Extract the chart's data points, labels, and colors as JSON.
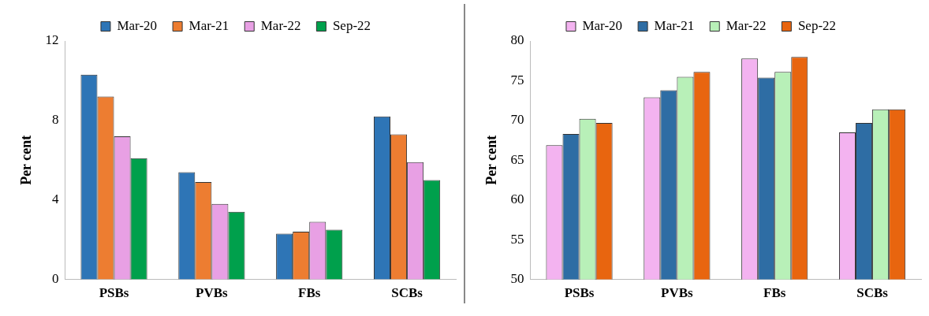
{
  "chart_data": [
    {
      "type": "bar",
      "categories": [
        "PSBs",
        "PVBs",
        "FBs",
        "SCBs"
      ],
      "ylabel": "Per cent",
      "ylim": [
        0,
        12
      ],
      "yticks": [
        0,
        4,
        8,
        12
      ],
      "grid": false,
      "legend": "top",
      "series": [
        {
          "name": "Mar-20",
          "color": "#2e75b6",
          "values": [
            10.3,
            5.4,
            2.3,
            8.2
          ]
        },
        {
          "name": "Mar-21",
          "color": "#ed7d31",
          "values": [
            9.2,
            4.9,
            2.4,
            7.3
          ]
        },
        {
          "name": "Mar-22",
          "color": "#e8a0e4",
          "values": [
            7.2,
            3.8,
            2.9,
            5.9
          ]
        },
        {
          "name": "Sep-22",
          "color": "#00a04c",
          "values": [
            6.1,
            3.4,
            2.5,
            5.0
          ]
        }
      ]
    },
    {
      "type": "bar",
      "categories": [
        "PSBs",
        "PVBs",
        "FBs",
        "SCBs"
      ],
      "ylabel": "Per cent",
      "ylim": [
        50,
        80
      ],
      "yticks": [
        50,
        55,
        60,
        65,
        70,
        75,
        80
      ],
      "grid": false,
      "legend": "top",
      "series": [
        {
          "name": "Mar-20",
          "color": "#f3b3f0",
          "values": [
            66.9,
            72.9,
            77.8,
            68.5
          ]
        },
        {
          "name": "Mar-21",
          "color": "#2e6da4",
          "values": [
            68.3,
            73.8,
            75.4,
            69.7
          ]
        },
        {
          "name": "Mar-22",
          "color": "#b8f0b8",
          "values": [
            70.2,
            75.5,
            76.1,
            71.4
          ]
        },
        {
          "name": "Sep-22",
          "color": "#e8650f",
          "values": [
            69.7,
            76.1,
            78.0,
            71.4
          ]
        }
      ]
    }
  ]
}
